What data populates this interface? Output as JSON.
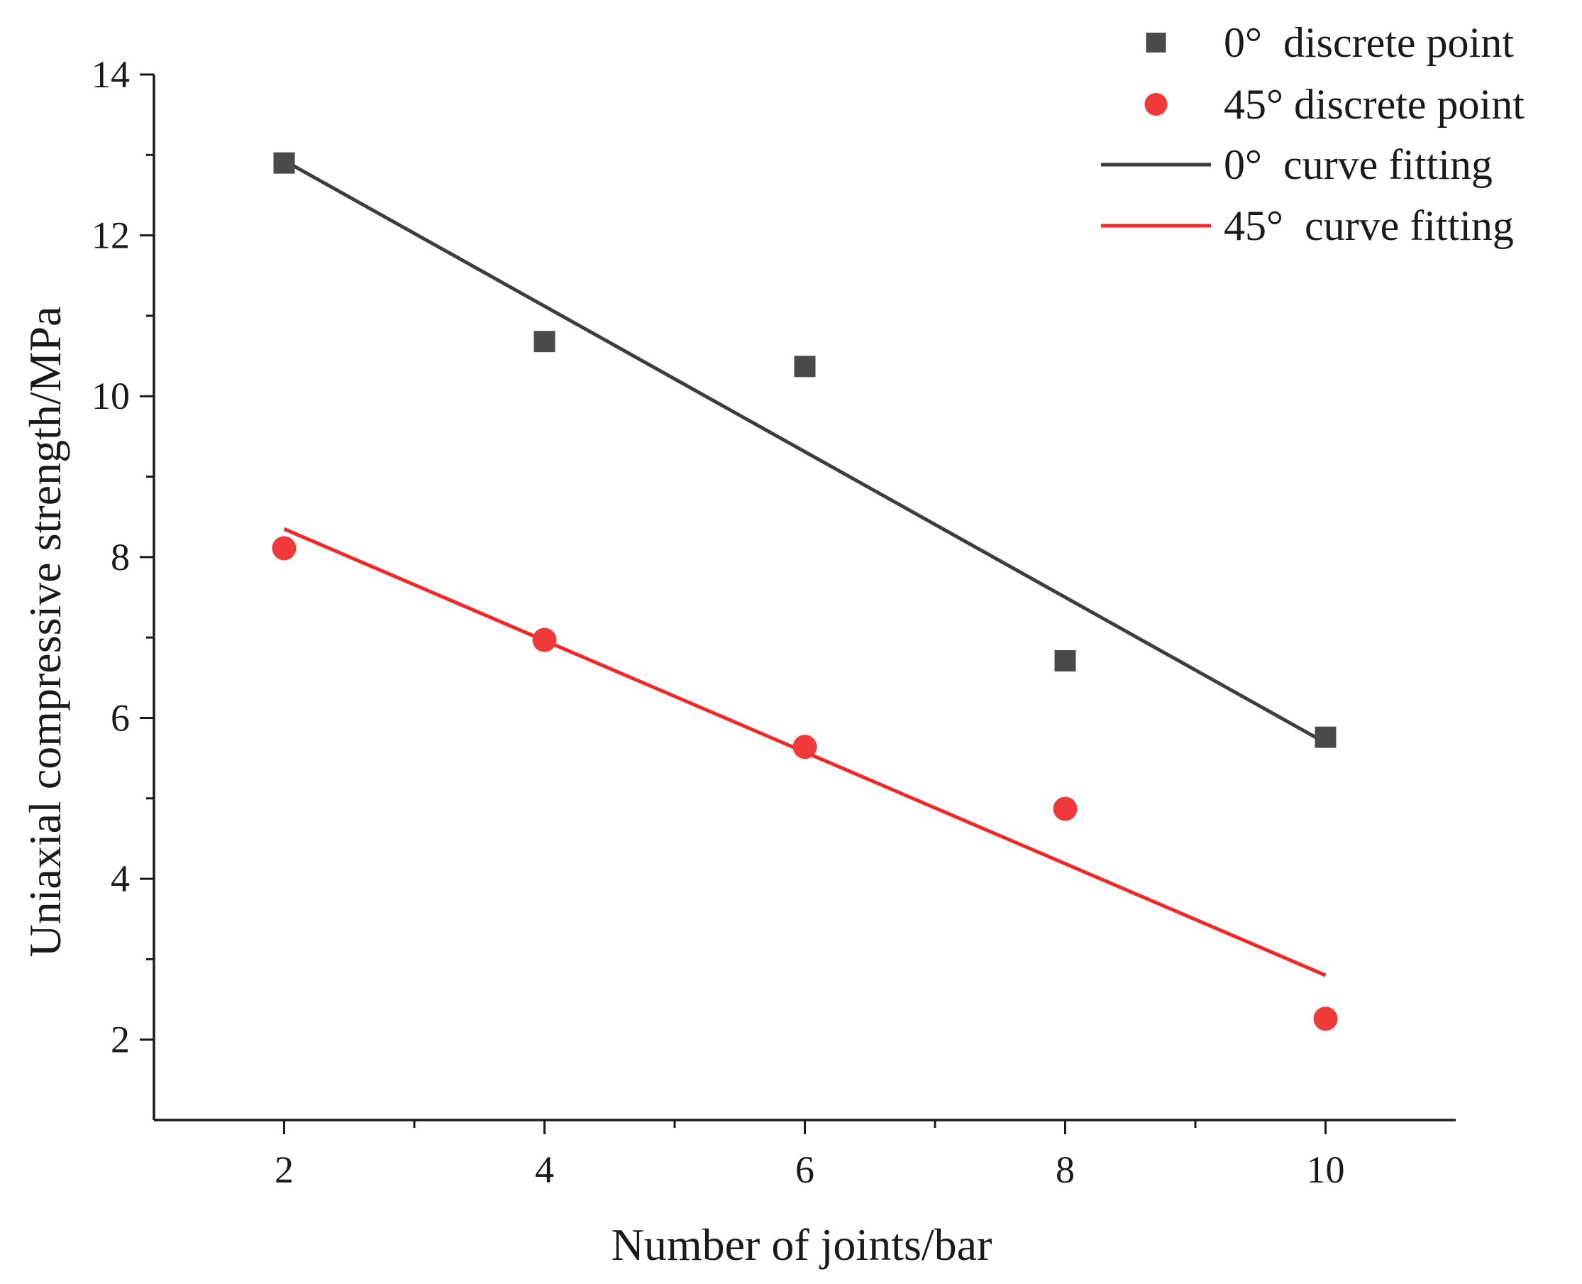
{
  "chart_data": {
    "type": "scatter",
    "title": "",
    "xlabel": "Number of joints/bar",
    "ylabel": "Uniaxial compressive strength/MPa",
    "xlim": [
      1,
      11
    ],
    "ylim": [
      1,
      14
    ],
    "xticks": [
      2,
      4,
      6,
      8,
      10
    ],
    "xticks_minor": [
      3,
      5,
      7,
      9
    ],
    "yticks": [
      2,
      4,
      6,
      8,
      10,
      12,
      14
    ],
    "yticks_minor": [
      3,
      5,
      7,
      9,
      11,
      13
    ],
    "grid": false,
    "legend_position": "top-right",
    "series": [
      {
        "name": "0°  discrete point",
        "kind": "scatter",
        "marker": "square",
        "color": "#4a4a4a",
        "x": [
          2,
          4,
          6,
          8,
          10
        ],
        "y": [
          12.9,
          10.68,
          10.37,
          6.71,
          5.76
        ]
      },
      {
        "name": "45° discrete point",
        "kind": "scatter",
        "marker": "circle",
        "color": "#f03a3a",
        "x": [
          2,
          4,
          6,
          8,
          10
        ],
        "y": [
          8.11,
          6.97,
          5.64,
          4.87,
          2.26
        ]
      },
      {
        "name": "0°  curve fitting",
        "kind": "line",
        "color": "#3d3d3d",
        "x": [
          2,
          10
        ],
        "y": [
          12.93,
          5.69
        ]
      },
      {
        "name": "45°  curve fitting",
        "kind": "line",
        "color": "#f02828",
        "x": [
          2,
          10
        ],
        "y": [
          8.35,
          2.8
        ]
      }
    ]
  }
}
